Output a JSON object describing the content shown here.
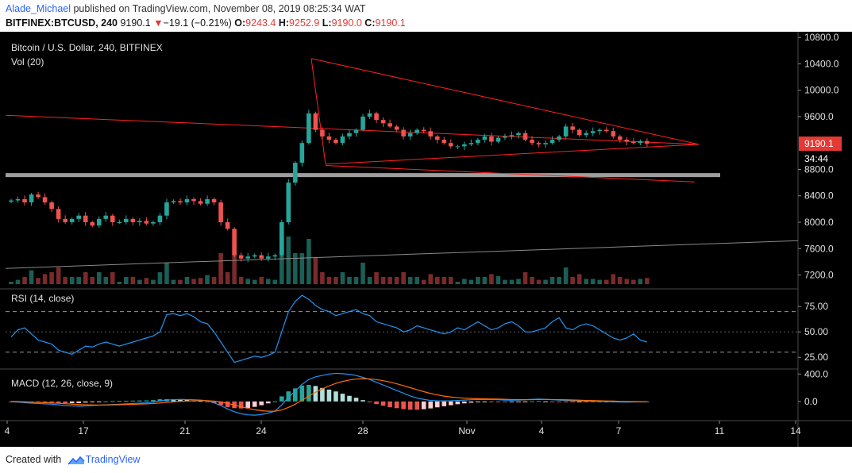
{
  "header": {
    "author": "Alade_Michael",
    "published_text": "published on TradingView.com, November 08, 2019 08:25:34 WAT",
    "symbol": "BITFINEX:BTCUSD, 240",
    "last": "9190.1",
    "change_arrow": "▼",
    "change": "−19.1 (−0.21%)",
    "o_label": "O:",
    "o": "9243.4",
    "h_label": "H:",
    "h": "9252.9",
    "l_label": "L:",
    "l": "9190.0",
    "c_label": "C:",
    "c": "9190.1"
  },
  "footer": {
    "created_with": "Created with",
    "brand": "TradingView",
    "logo_icon": "tradingview-logo-icon"
  },
  "colors": {
    "up": "#26a69a",
    "down": "#ef5350",
    "trendline": "#ff2020",
    "level": "#9e9e9e",
    "rsi": "#2196f3",
    "macd": "#2196f3",
    "signal": "#ff6d00",
    "background": "#000000"
  },
  "chart_data": {
    "type": "candlestick",
    "title": "Bitcoin / U.S. Dollar, 240, BITFINEX",
    "volume_label": "Vol (20)",
    "price_ticks": [
      "10800.0",
      "10400.0",
      "10000.0",
      "9600.0",
      "8800.0",
      "8400.0",
      "8000.0",
      "7600.0",
      "7200.0"
    ],
    "price_range": [
      7050,
      10850
    ],
    "last_price_label": "9190.1",
    "countdown_label": "34:44",
    "x_labels": [
      "4",
      "17",
      "21",
      "24",
      "28",
      "Nov",
      "4",
      "7",
      "11",
      "14"
    ],
    "horizontal_level": 8720,
    "triangle_apex_price": 9180,
    "price_series": [
      8330,
      8350,
      8300,
      8420,
      8380,
      8300,
      8200,
      8050,
      8000,
      8050,
      8100,
      8000,
      7950,
      8050,
      8100,
      8000,
      8000,
      8050,
      8000,
      8020,
      7980,
      8000,
      8100,
      8300,
      8320,
      8300,
      8350,
      8320,
      8280,
      8350,
      8300,
      8000,
      7900,
      7500,
      7450,
      7480,
      7500,
      7450,
      7480,
      7500,
      8000,
      8600,
      8900,
      9200,
      9650,
      9400,
      9300,
      9250,
      9200,
      9300,
      9350,
      9400,
      9600,
      9650,
      9550,
      9500,
      9450,
      9400,
      9300,
      9350,
      9400,
      9380,
      9300,
      9250,
      9200,
      9150,
      9150,
      9180,
      9200,
      9250,
      9300,
      9220,
      9280,
      9300,
      9320,
      9350,
      9250,
      9200,
      9180,
      9200,
      9250,
      9300,
      9450,
      9400,
      9320,
      9350,
      9380,
      9400,
      9380,
      9300,
      9250,
      9220,
      9200,
      9230,
      9190
    ],
    "rsi": {
      "label": "RSI (14, close)",
      "ticks": [
        "75.00",
        "50.00",
        "25.00"
      ],
      "range": [
        15,
        90
      ],
      "bands": [
        70,
        50,
        30
      ],
      "values": [
        45,
        52,
        54,
        48,
        42,
        40,
        38,
        32,
        30,
        28,
        32,
        36,
        35,
        38,
        40,
        38,
        36,
        38,
        40,
        42,
        44,
        46,
        50,
        67,
        68,
        66,
        68,
        65,
        60,
        58,
        50,
        40,
        30,
        20,
        22,
        24,
        26,
        25,
        27,
        30,
        50,
        70,
        80,
        86,
        82,
        76,
        72,
        70,
        66,
        68,
        70,
        72,
        68,
        66,
        60,
        58,
        56,
        54,
        50,
        52,
        56,
        54,
        52,
        50,
        48,
        50,
        54,
        52,
        56,
        60,
        56,
        52,
        54,
        58,
        60,
        56,
        50,
        50,
        52,
        54,
        60,
        64,
        54,
        52,
        56,
        58,
        56,
        52,
        48,
        44,
        42,
        44,
        48,
        42,
        40
      ]
    },
    "macd": {
      "label": "MACD (12, 26, close, 9)",
      "ticks": [
        "400.0",
        "0.0"
      ],
      "range": [
        -280,
        450
      ],
      "macd_values": [
        -5,
        -10,
        -18,
        -25,
        -30,
        -35,
        -40,
        -50,
        -60,
        -65,
        -70,
        -65,
        -60,
        -55,
        -50,
        -45,
        -40,
        -35,
        -30,
        -25,
        -20,
        -10,
        10,
        20,
        25,
        30,
        28,
        25,
        20,
        10,
        -20,
        -60,
        -110,
        -150,
        -180,
        -195,
        -200,
        -190,
        -170,
        -140,
        -50,
        60,
        150,
        250,
        320,
        360,
        380,
        400,
        410,
        405,
        395,
        380,
        350,
        320,
        280,
        240,
        200,
        160,
        120,
        80,
        50,
        30,
        15,
        10,
        8,
        10,
        15,
        20,
        25,
        28,
        30,
        28,
        25,
        20,
        18,
        20,
        25,
        30,
        35,
        30,
        25,
        20,
        15,
        10,
        8,
        5,
        3,
        0,
        -2,
        -5,
        -8,
        -10,
        -8,
        -5,
        -3
      ],
      "signal_values": [
        0,
        -2,
        -6,
        -10,
        -14,
        -18,
        -22,
        -27,
        -33,
        -39,
        -45,
        -49,
        -51,
        -52,
        -51,
        -50,
        -48,
        -45,
        -42,
        -39,
        -35,
        -30,
        -22,
        -14,
        -6,
        1,
        6,
        10,
        12,
        12,
        6,
        -7,
        -28,
        -52,
        -78,
        -101,
        -121,
        -135,
        -142,
        -142,
        -124,
        -87,
        -40,
        18,
        78,
        134,
        183,
        227,
        264,
        292,
        313,
        326,
        331,
        329,
        319,
        303,
        283,
        258,
        231,
        201,
        171,
        143,
        117,
        96,
        78,
        65,
        55,
        48,
        43,
        40,
        38,
        36,
        34,
        31,
        28,
        26,
        26,
        27,
        28,
        29,
        28,
        26,
        24,
        21,
        18,
        15,
        13,
        10,
        7,
        5,
        2,
        0,
        -2,
        -3,
        -3
      ]
    }
  }
}
